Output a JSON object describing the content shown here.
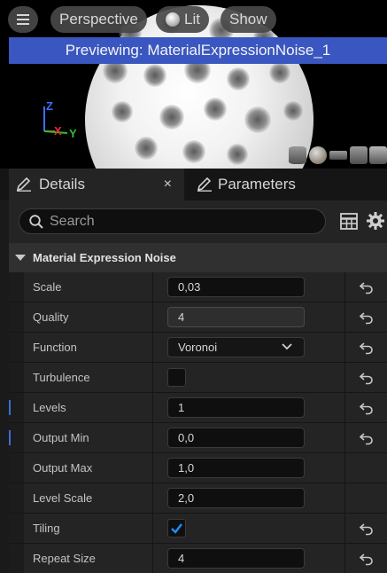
{
  "viewport": {
    "view_mode": "Perspective",
    "lighting": "Lit",
    "show": "Show",
    "banner": "Previewing: MaterialExpressionNoise_1",
    "axis": {
      "z": "Z",
      "x": "X",
      "y": "Y"
    },
    "preview_shapes": [
      "cylinder-shape-icon",
      "sphere-shape-icon",
      "plane-shape-icon",
      "cube-shape-icon",
      "teapot-shape-icon"
    ]
  },
  "tabs": {
    "details": "Details",
    "close": "×",
    "parameters": "Parameters"
  },
  "search": {
    "placeholder": "Search"
  },
  "category": {
    "title": "Material Expression Noise"
  },
  "properties": [
    {
      "name": "Scale",
      "type": "text",
      "value": "0,03",
      "reset": true
    },
    {
      "name": "Quality",
      "type": "slider",
      "value": "4",
      "reset": true
    },
    {
      "name": "Function",
      "type": "dropdown",
      "value": "Voronoi",
      "reset": true
    },
    {
      "name": "Turbulence",
      "type": "checkbox",
      "checked": false,
      "reset": true
    },
    {
      "name": "Levels",
      "type": "text",
      "value": "1",
      "reset": true
    },
    {
      "name": "Output Min",
      "type": "text",
      "value": "0,0",
      "reset": true
    },
    {
      "name": "Output Max",
      "type": "text",
      "value": "1,0",
      "reset": false
    },
    {
      "name": "Level Scale",
      "type": "text",
      "value": "2,0",
      "reset": false
    },
    {
      "name": "Tiling",
      "type": "checkbox",
      "checked": true,
      "reset": true
    },
    {
      "name": "Repeat Size",
      "type": "text",
      "value": "4",
      "reset": true
    }
  ],
  "colors": {
    "banner": "#3a56c0",
    "accent": "#1f8fff",
    "axis_x": "#e03030",
    "axis_y": "#30c030",
    "axis_z": "#3a6fff"
  }
}
